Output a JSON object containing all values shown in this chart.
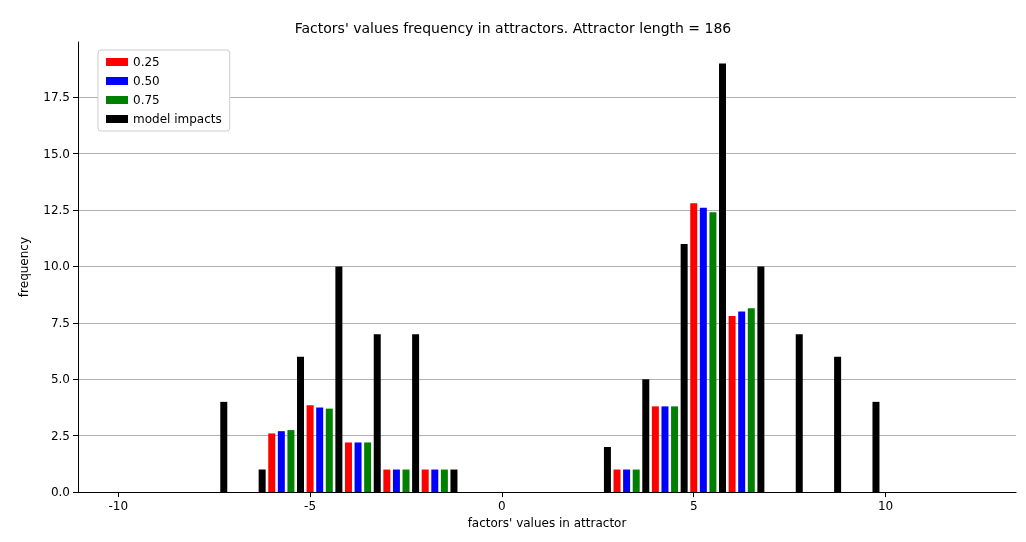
{
  "chart_data": {
    "type": "bar",
    "title": "Factors' values frequency in attractors. Attractor length = 186",
    "xlabel": "factors' values in attractor",
    "ylabel": "frequency",
    "series": [
      {
        "name": "0.25",
        "color": "#ff0000",
        "x": [
          -6,
          -5,
          -4,
          -3,
          -2,
          3,
          4,
          5,
          6
        ],
        "values": [
          2.6,
          3.85,
          2.2,
          1.0,
          1.0,
          1.0,
          3.8,
          12.8,
          7.8
        ]
      },
      {
        "name": "0.50",
        "color": "#0000ff",
        "x": [
          -5.75,
          -4.75,
          -3.75,
          -2.75,
          -1.75,
          3.25,
          4.25,
          5.25,
          6.25
        ],
        "values": [
          2.7,
          3.75,
          2.2,
          1.0,
          1.0,
          1.0,
          3.8,
          12.6,
          8.0
        ]
      },
      {
        "name": "0.75",
        "color": "#008000",
        "x": [
          -5.5,
          -4.5,
          -3.5,
          -2.5,
          -1.5,
          3.5,
          4.5,
          5.5,
          6.5
        ],
        "values": [
          2.75,
          3.7,
          2.2,
          1.0,
          1.0,
          1.0,
          3.8,
          12.4,
          8.15
        ]
      },
      {
        "name": "model impacts",
        "color": "#000000",
        "x": [
          -7.25,
          -6.25,
          -5.25,
          -4.25,
          -3.25,
          -2.25,
          -1.25,
          2.75,
          3.75,
          4.75,
          5.75,
          6.75,
          7.75,
          8.75,
          9.75
        ],
        "values": [
          4,
          1,
          6,
          10,
          7,
          7,
          1,
          2,
          5,
          11,
          19,
          10,
          7,
          6,
          4
        ]
      }
    ],
    "xlim": [
      -11.05,
      13.4
    ],
    "xticks": [
      -10,
      -5,
      0,
      5,
      10
    ],
    "ylim": [
      0,
      19.95
    ],
    "yticks": [
      {
        "value": 0,
        "label": "0.0"
      },
      {
        "value": 2.5,
        "label": "2.5"
      },
      {
        "value": 5,
        "label": "5.0"
      },
      {
        "value": 7.5,
        "label": "7.5"
      },
      {
        "value": 10,
        "label": "10.0"
      },
      {
        "value": 12.5,
        "label": "12.5"
      },
      {
        "value": 15,
        "label": "15.0"
      },
      {
        "value": 17.5,
        "label": "17.5"
      }
    ],
    "grid": "y",
    "legend": "top left"
  }
}
